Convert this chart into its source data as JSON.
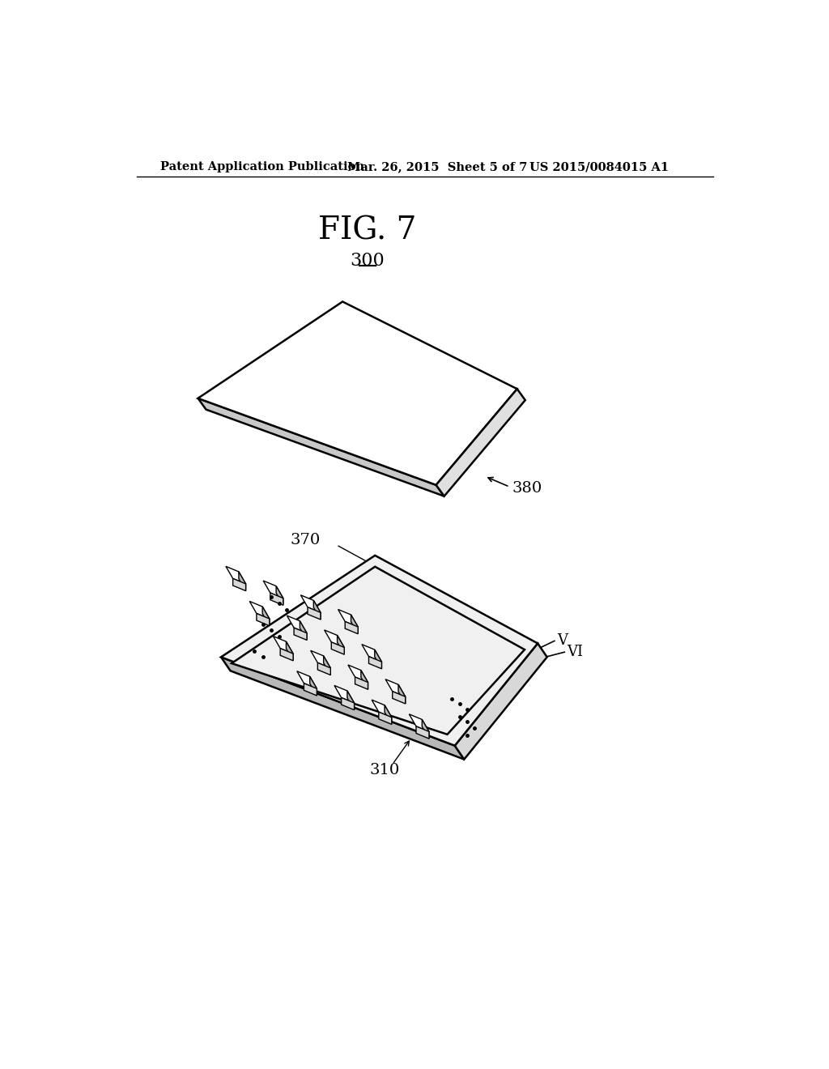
{
  "header_left": "Patent Application Publication",
  "header_mid": "Mar. 26, 2015  Sheet 5 of 7",
  "header_right": "US 2015/0084015 A1",
  "fig_title": "FIG. 7",
  "label_300": "300",
  "label_380": "380",
  "label_370": "370",
  "label_310": "310",
  "label_V": "V",
  "label_VI": "VI",
  "bg_color": "#ffffff",
  "line_color": "#000000"
}
